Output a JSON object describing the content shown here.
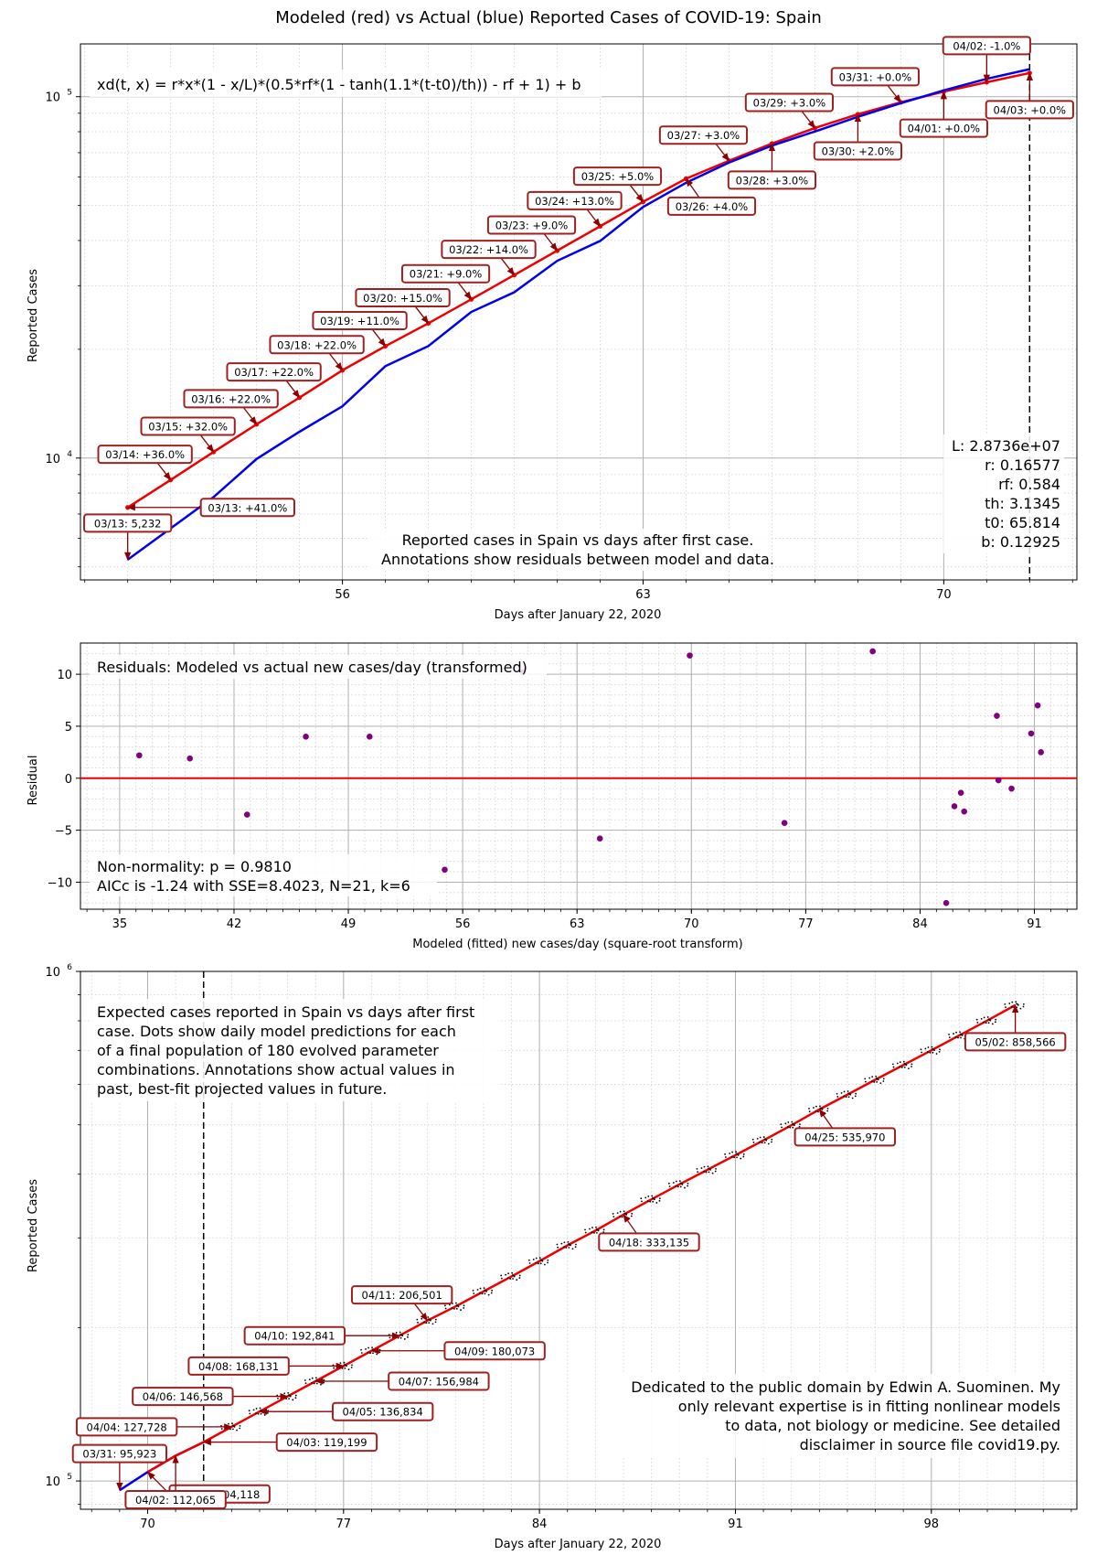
{
  "figure_title": "Modeled (red) vs Actual (blue) Reported Cases of COVID-19: Spain",
  "colors": {
    "model": "#ee0000",
    "actual": "#0000ee",
    "residual": "#800080",
    "annot_border": "#a02020",
    "arrow": "#8b0000",
    "grid_major": "#b0b0b0",
    "grid_minor": "#d0d0d0"
  },
  "chart_data": [
    {
      "type": "line",
      "scale": "log",
      "xlabel": "Days after January 22, 2020",
      "ylabel": "Reported Cases",
      "xticks": [
        56,
        63,
        70
      ],
      "xlim": [
        49.9,
        73.1
      ],
      "ylim": [
        4600,
        140000
      ],
      "ytick_labels": [
        {
          "value": 10000,
          "base": "10",
          "exp": "4"
        },
        {
          "value": 100000,
          "base": "10",
          "exp": "5"
        }
      ],
      "equation": "xd(t, x) = r*x*(1 - x/L)*(0.5*rf*(1 - tanh(1.1*(t-t0)/th)) - rf + 1) + b",
      "params": [
        "L: 2.8736e+07",
        "r: 0.16577",
        "rf: 0.584",
        "th: 3.1345",
        "t0: 65.814",
        "b: 0.12925"
      ],
      "caption": [
        "Reported cases in Spain vs days after first case.",
        "Annotations show residuals between model and data."
      ],
      "divider_x": 72,
      "series": [
        {
          "name": "Modeled",
          "color": "#ee0000",
          "x": [
            51,
            52,
            53,
            54,
            55,
            56,
            57,
            58,
            59,
            60,
            61,
            62,
            63,
            64,
            65,
            66,
            67,
            68,
            69,
            70,
            71,
            72
          ],
          "y": [
            7300,
            8700,
            10400,
            12400,
            14700,
            17500,
            20400,
            23600,
            27500,
            32100,
            37500,
            43800,
            51200,
            59300,
            66500,
            74200,
            81900,
            89400,
            96500,
            103300,
            109700,
            116300
          ]
        },
        {
          "name": "Actual",
          "color": "#0000ee",
          "x": [
            51,
            52,
            53,
            54,
            55,
            56,
            57,
            58,
            59,
            60,
            61,
            62,
            63,
            64,
            65,
            66,
            67,
            68,
            69,
            70,
            71,
            72
          ],
          "y": [
            5232,
            6391,
            7798,
            9942,
            11826,
            13910,
            17963,
            20412,
            25374,
            28768,
            35136,
            39885,
            49515,
            57786,
            65719,
            73235,
            80110,
            87956,
            95923,
            104118,
            112065,
            119199
          ]
        }
      ],
      "annotations": [
        {
          "x": 51,
          "y": 7300,
          "text": "03/13: +41.0%",
          "dir": "right"
        },
        {
          "x": 51,
          "y": 5232,
          "text": "03/13: 5,232",
          "dir": "up"
        },
        {
          "x": 52,
          "y": 8700,
          "text": "03/14: +36.0%",
          "dir": "ul"
        },
        {
          "x": 53,
          "y": 10400,
          "text": "03/15: +32.0%",
          "dir": "ul"
        },
        {
          "x": 54,
          "y": 12400,
          "text": "03/16: +22.0%",
          "dir": "ul"
        },
        {
          "x": 55,
          "y": 14700,
          "text": "03/17: +22.0%",
          "dir": "ul"
        },
        {
          "x": 56,
          "y": 17500,
          "text": "03/18: +22.0%",
          "dir": "ul"
        },
        {
          "x": 57,
          "y": 20400,
          "text": "03/19: +11.0%",
          "dir": "ul"
        },
        {
          "x": 58,
          "y": 23600,
          "text": "03/20: +15.0%",
          "dir": "ul"
        },
        {
          "x": 59,
          "y": 27500,
          "text": "03/21: +9.0%",
          "dir": "ul"
        },
        {
          "x": 60,
          "y": 32100,
          "text": "03/22: +14.0%",
          "dir": "ul"
        },
        {
          "x": 61,
          "y": 37500,
          "text": "03/23: +9.0%",
          "dir": "ul"
        },
        {
          "x": 62,
          "y": 43800,
          "text": "03/24: +13.0%",
          "dir": "ul"
        },
        {
          "x": 63,
          "y": 51200,
          "text": "03/25: +5.0%",
          "dir": "ul"
        },
        {
          "x": 64,
          "y": 59300,
          "text": "03/26: +4.0%",
          "dir": "dr"
        },
        {
          "x": 65,
          "y": 66500,
          "text": "03/27: +3.0%",
          "dir": "ul"
        },
        {
          "x": 66,
          "y": 74200,
          "text": "03/28: +3.0%",
          "dir": "down"
        },
        {
          "x": 67,
          "y": 81900,
          "text": "03/29: +3.0%",
          "dir": "ul"
        },
        {
          "x": 68,
          "y": 89400,
          "text": "03/30: +2.0%",
          "dir": "down"
        },
        {
          "x": 69,
          "y": 96500,
          "text": "03/31: +0.0%",
          "dir": "ul"
        },
        {
          "x": 70,
          "y": 103300,
          "text": "04/01: +0.0%",
          "dir": "down"
        },
        {
          "x": 71,
          "y": 109700,
          "text": "04/02: -1.0%",
          "dir": "up"
        },
        {
          "x": 72,
          "y": 116300,
          "text": "04/03: +0.0%",
          "dir": "down"
        }
      ]
    },
    {
      "type": "scatter",
      "xlabel": "Modeled (fitted) new cases/day (square-root transform)",
      "ylabel": "Residual",
      "xticks": [
        35,
        42,
        49,
        56,
        63,
        70,
        77,
        84,
        91
      ],
      "yticks": [
        10,
        5,
        0,
        -5,
        -10
      ],
      "xlim": [
        32.6,
        93.6
      ],
      "ylim": [
        -12.6,
        13.0
      ],
      "title_text": "Residuals: Modeled vs actual new cases/day (transformed)",
      "stats": [
        "Non-normality: p = 0.9810",
        "AICc is -1.24 with SSE=8.4023, N=21, k=6"
      ],
      "points": [
        {
          "x": 36.2,
          "y": 2.2
        },
        {
          "x": 39.3,
          "y": 1.9
        },
        {
          "x": 42.8,
          "y": -3.5
        },
        {
          "x": 46.4,
          "y": 4.0
        },
        {
          "x": 50.3,
          "y": 4.0
        },
        {
          "x": 54.9,
          "y": -8.8
        },
        {
          "x": 59.7,
          "y": 10.2
        },
        {
          "x": 64.4,
          "y": -5.8
        },
        {
          "x": 69.9,
          "y": 11.8
        },
        {
          "x": 75.7,
          "y": -4.3
        },
        {
          "x": 81.1,
          "y": 12.2
        },
        {
          "x": 85.6,
          "y": -12.0
        },
        {
          "x": 86.1,
          "y": -2.7
        },
        {
          "x": 86.5,
          "y": -1.4
        },
        {
          "x": 86.7,
          "y": -3.2
        },
        {
          "x": 88.7,
          "y": 6.0
        },
        {
          "x": 88.8,
          "y": -0.2
        },
        {
          "x": 89.6,
          "y": -1.0
        },
        {
          "x": 90.8,
          "y": 4.3
        },
        {
          "x": 91.2,
          "y": 7.0
        },
        {
          "x": 91.4,
          "y": 2.5
        }
      ]
    },
    {
      "type": "line",
      "scale": "log",
      "xlabel": "Days after January 22, 2020",
      "ylabel": "Reported Cases",
      "xticks": [
        70,
        77,
        84,
        91,
        98
      ],
      "xlim": [
        67.6,
        103.2
      ],
      "ylim": [
        88000,
        1000000
      ],
      "ytick_labels": [
        {
          "value": 100000,
          "base": "10",
          "exp": "5"
        },
        {
          "value": 1000000,
          "base": "10",
          "exp": "6"
        }
      ],
      "divider_x": 72,
      "description": [
        "Expected cases reported in Spain vs days after first",
        "case. Dots show daily model predictions for each",
        "of a final population of 180 evolved parameter",
        "combinations. Annotations show actual values in",
        "past, best-fit projected values in future."
      ],
      "credit": [
        "Dedicated to the public domain by Edwin A. Suominen. My",
        "only relevant expertise is in fitting nonlinear models",
        "to data, not biology or medicine. See detailed",
        "disclaimer in source file covid19.py."
      ],
      "series": [
        {
          "name": "Actual",
          "color": "#0000ee",
          "x": [
            69,
            70,
            71,
            72
          ],
          "y": [
            95923,
            104118,
            112065,
            119199
          ]
        },
        {
          "name": "Modeled",
          "color": "#ee0000",
          "x": [
            70,
            71,
            72,
            73,
            74,
            75,
            76,
            77,
            78,
            79,
            80,
            81,
            82,
            83,
            84,
            85,
            86,
            87,
            88,
            89,
            90,
            91,
            92,
            93,
            94,
            95,
            96,
            97,
            98,
            99,
            100,
            101
          ],
          "y": [
            104118,
            112065,
            119199,
            127728,
            136834,
            146568,
            156984,
            168131,
            180073,
            192841,
            206501,
            220000,
            235500,
            252000,
            270000,
            290000,
            310000,
            333135,
            357000,
            382000,
            408000,
            436000,
            466000,
            499000,
            535970,
            573000,
            613000,
            655000,
            700000,
            749000,
            801000,
            858566
          ]
        }
      ],
      "annotations": [
        {
          "x": 69,
          "y": 95923,
          "text": "03/31: 95,923",
          "dir": "up"
        },
        {
          "x": 70,
          "y": 104118,
          "text": "04/01: 104,118",
          "dir": "below_right"
        },
        {
          "x": 71,
          "y": 112065,
          "text": "04/02: 112,065",
          "dir": "below"
        },
        {
          "x": 72,
          "y": 119199,
          "text": "04/03: 119,199",
          "dir": "right"
        },
        {
          "x": 73,
          "y": 127728,
          "text": "04/04: 127,728",
          "dir": "left"
        },
        {
          "x": 74,
          "y": 136834,
          "text": "04/05: 136,834",
          "dir": "right"
        },
        {
          "x": 75,
          "y": 146568,
          "text": "04/06: 146,568",
          "dir": "left"
        },
        {
          "x": 76,
          "y": 156984,
          "text": "04/07: 156,984",
          "dir": "right"
        },
        {
          "x": 77,
          "y": 168131,
          "text": "04/08: 168,131",
          "dir": "left"
        },
        {
          "x": 78,
          "y": 180073,
          "text": "04/09: 180,073",
          "dir": "right"
        },
        {
          "x": 79,
          "y": 192841,
          "text": "04/10: 192,841",
          "dir": "left"
        },
        {
          "x": 80,
          "y": 206501,
          "text": "04/11: 206,501",
          "dir": "ul"
        },
        {
          "x": 87,
          "y": 333135,
          "text": "04/18: 333,135",
          "dir": "dr"
        },
        {
          "x": 94,
          "y": 535970,
          "text": "04/25: 535,970",
          "dir": "dr"
        },
        {
          "x": 101,
          "y": 858566,
          "text": "05/02: 858,566",
          "dir": "down"
        }
      ]
    }
  ]
}
